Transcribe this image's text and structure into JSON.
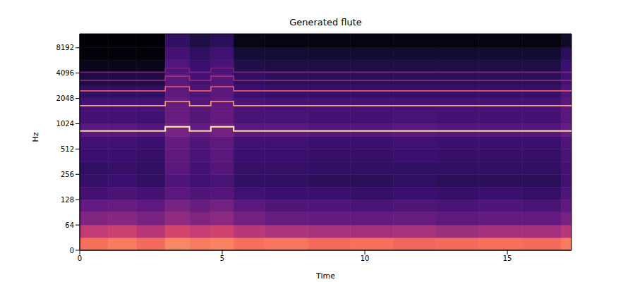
{
  "chart_data": {
    "type": "heatmap",
    "title": "Generated flute",
    "x_label": "Time",
    "y_label": "Hz",
    "xlim": [
      0,
      17.25
    ],
    "xticks": [
      0,
      5,
      10,
      15
    ],
    "ylim": [
      0,
      12000
    ],
    "yticks": [
      0,
      64,
      128,
      256,
      512,
      1024,
      2048,
      4096,
      8192
    ],
    "log": "y",
    "x_bins": [
      0,
      1,
      2,
      3,
      3.85,
      4.6,
      5.4,
      6.5,
      8,
      9.5,
      11,
      12.5,
      14,
      15.5,
      16.9,
      17.25
    ],
    "y_bins": [
      0,
      32,
      64,
      91,
      128,
      181,
      256,
      362,
      512,
      724,
      1024,
      1448,
      2048,
      2896,
      4096,
      5793,
      8192,
      12000
    ],
    "values": [
      [
        -24,
        -22,
        -25,
        -20,
        -22,
        -21,
        -24,
        -23,
        -25,
        -24,
        -26,
        -25,
        -24,
        -25,
        -22
      ],
      [
        -38,
        -36,
        -40,
        -34,
        -37,
        -35,
        -40,
        -42,
        -43,
        -44,
        -43,
        -45,
        -44,
        -44,
        -40
      ],
      [
        -50,
        -49,
        -52,
        -47,
        -50,
        -48,
        -53,
        -55,
        -56,
        -56,
        -55,
        -57,
        -56,
        -56,
        -52
      ],
      [
        -56,
        -55,
        -57,
        -52,
        -55,
        -53,
        -58,
        -60,
        -60,
        -61,
        -60,
        -61,
        -60,
        -61,
        -57
      ],
      [
        -62,
        -61,
        -62,
        -58,
        -60,
        -59,
        -63,
        -64,
        -64,
        -65,
        -64,
        -65,
        -64,
        -65,
        -60
      ],
      [
        -65,
        -64,
        -66,
        -60,
        -63,
        -61,
        -66,
        -66,
        -67,
        -67,
        -66,
        -67,
        -67,
        -67,
        -62
      ],
      [
        -66,
        -65,
        -66,
        -58,
        -62,
        -59,
        -65,
        -65,
        -66,
        -66,
        -66,
        -66,
        -66,
        -66,
        -62
      ],
      [
        -64,
        -64,
        -65,
        -57,
        -61,
        -58,
        -64,
        -64,
        -65,
        -65,
        -64,
        -65,
        -65,
        -65,
        -61
      ],
      [
        -63,
        -63,
        -64,
        -56,
        -60,
        -57,
        -63,
        -63,
        -64,
        -64,
        -63,
        -64,
        -64,
        -64,
        -60
      ],
      [
        -58,
        -58,
        -59,
        -52,
        -56,
        -53,
        -58,
        -58,
        -59,
        -59,
        -58,
        -59,
        -59,
        -59,
        -55
      ],
      [
        -62,
        -62,
        -63,
        -55,
        -59,
        -56,
        -61,
        -61,
        -62,
        -62,
        -61,
        -62,
        -62,
        -62,
        -58
      ],
      [
        -62,
        -62,
        -62,
        -55,
        -59,
        -56,
        -61,
        -62,
        -62,
        -62,
        -62,
        -62,
        -62,
        -62,
        -58
      ],
      [
        -66,
        -66,
        -66,
        -57,
        -61,
        -58,
        -64,
        -65,
        -65,
        -65,
        -65,
        -65,
        -65,
        -65,
        -60
      ],
      [
        -70,
        -70,
        -70,
        -58,
        -62,
        -59,
        -66,
        -67,
        -67,
        -67,
        -67,
        -67,
        -67,
        -67,
        -62
      ],
      [
        -76,
        -76,
        -76,
        -60,
        -64,
        -61,
        -69,
        -70,
        -70,
        -70,
        -70,
        -70,
        -70,
        -70,
        -64
      ],
      [
        -79,
        -79,
        -79,
        -62,
        -66,
        -63,
        -72,
        -72,
        -73,
        -73,
        -73,
        -73,
        -73,
        -73,
        -67
      ],
      [
        -80,
        -80,
        -80,
        -66,
        -70,
        -67,
        -77,
        -78,
        -78,
        -78,
        -78,
        -78,
        -78,
        -78,
        -74
      ]
    ],
    "value_range": [
      -80,
      0
    ],
    "x": [
      0,
      3,
      3.85,
      4.6,
      5.4,
      17.25
    ],
    "series": [
      {
        "type": "line",
        "line_style": "step",
        "color": "#fde3a6",
        "values": [
          840,
          940,
          840,
          940,
          840,
          840
        ]
      },
      {
        "type": "line",
        "line_style": "step",
        "color": "#fca272",
        "values": [
          1680,
          1880,
          1680,
          1880,
          1680,
          1680
        ]
      },
      {
        "type": "line",
        "line_style": "step",
        "color": "#e35a6c",
        "values": [
          2520,
          2820,
          2520,
          2820,
          2520,
          2520
        ]
      },
      {
        "type": "line",
        "line_style": "step",
        "color": "#a0307e",
        "values": [
          3360,
          3760,
          3360,
          3760,
          3360,
          3360
        ]
      },
      {
        "type": "line",
        "line_style": "step",
        "color": "#7a2382",
        "values": [
          4200,
          4700,
          4200,
          4700,
          4200,
          4200
        ]
      }
    ]
  }
}
